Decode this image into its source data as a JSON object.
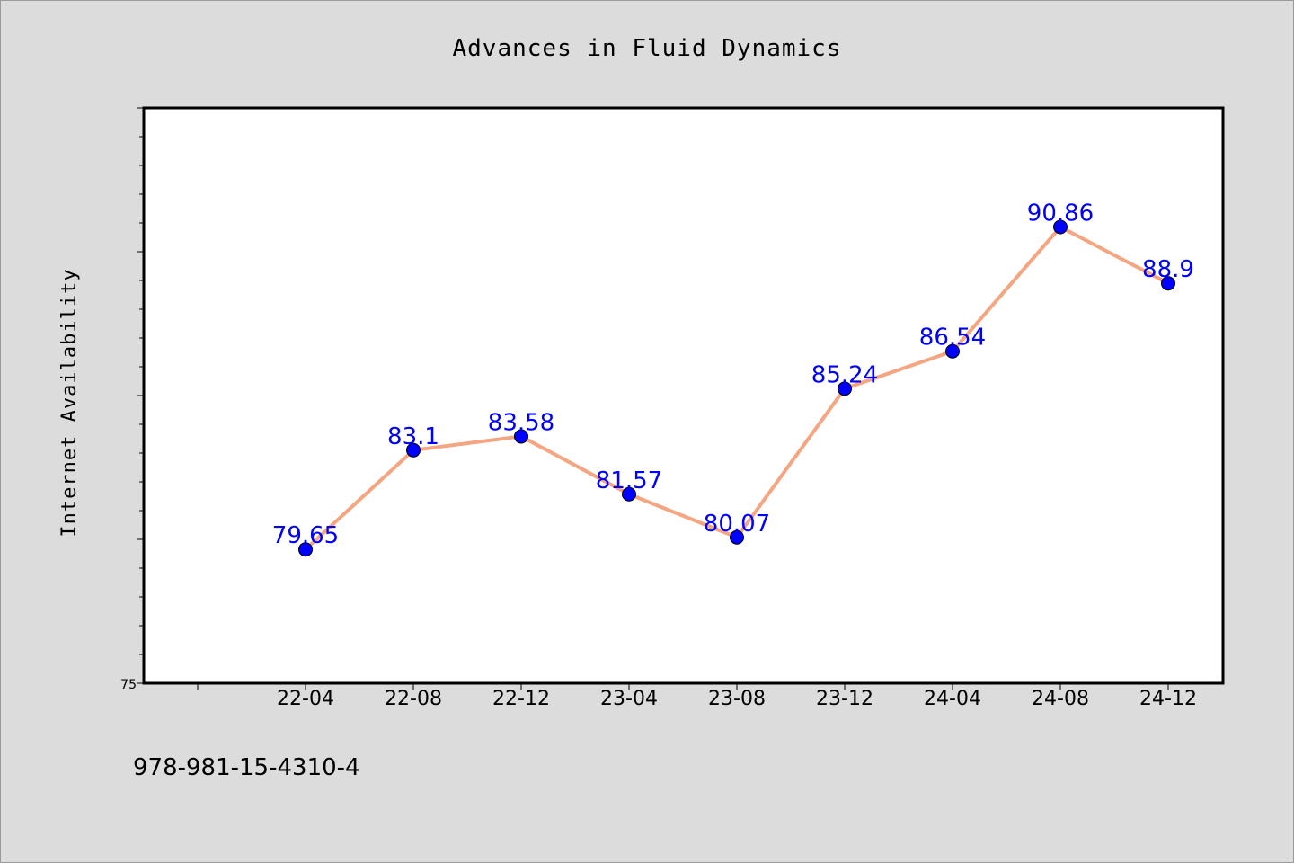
{
  "chart_data": {
    "type": "line",
    "title": "Advances in Fluid Dynamics",
    "xlabel": "",
    "ylabel": "Internet Availability",
    "categories": [
      "22-04",
      "22-08",
      "22-12",
      "23-04",
      "23-08",
      "23-12",
      "24-04",
      "24-08",
      "24-12"
    ],
    "values": [
      79.65,
      83.1,
      83.58,
      81.57,
      80.07,
      85.24,
      86.54,
      90.86,
      88.9
    ],
    "data_labels": [
      "79.65",
      "83.1",
      "83.58",
      "81.57",
      "80.07",
      "85.24",
      "86.54",
      "90.86",
      "88.9"
    ],
    "ylim": [
      75,
      95
    ],
    "ytick_label": "75",
    "grid": false,
    "line_color": "#f4a582",
    "marker_color": "#0000ff",
    "label_color": "#0000ff"
  },
  "footer": {
    "isbn": "978-981-15-4310-4"
  }
}
